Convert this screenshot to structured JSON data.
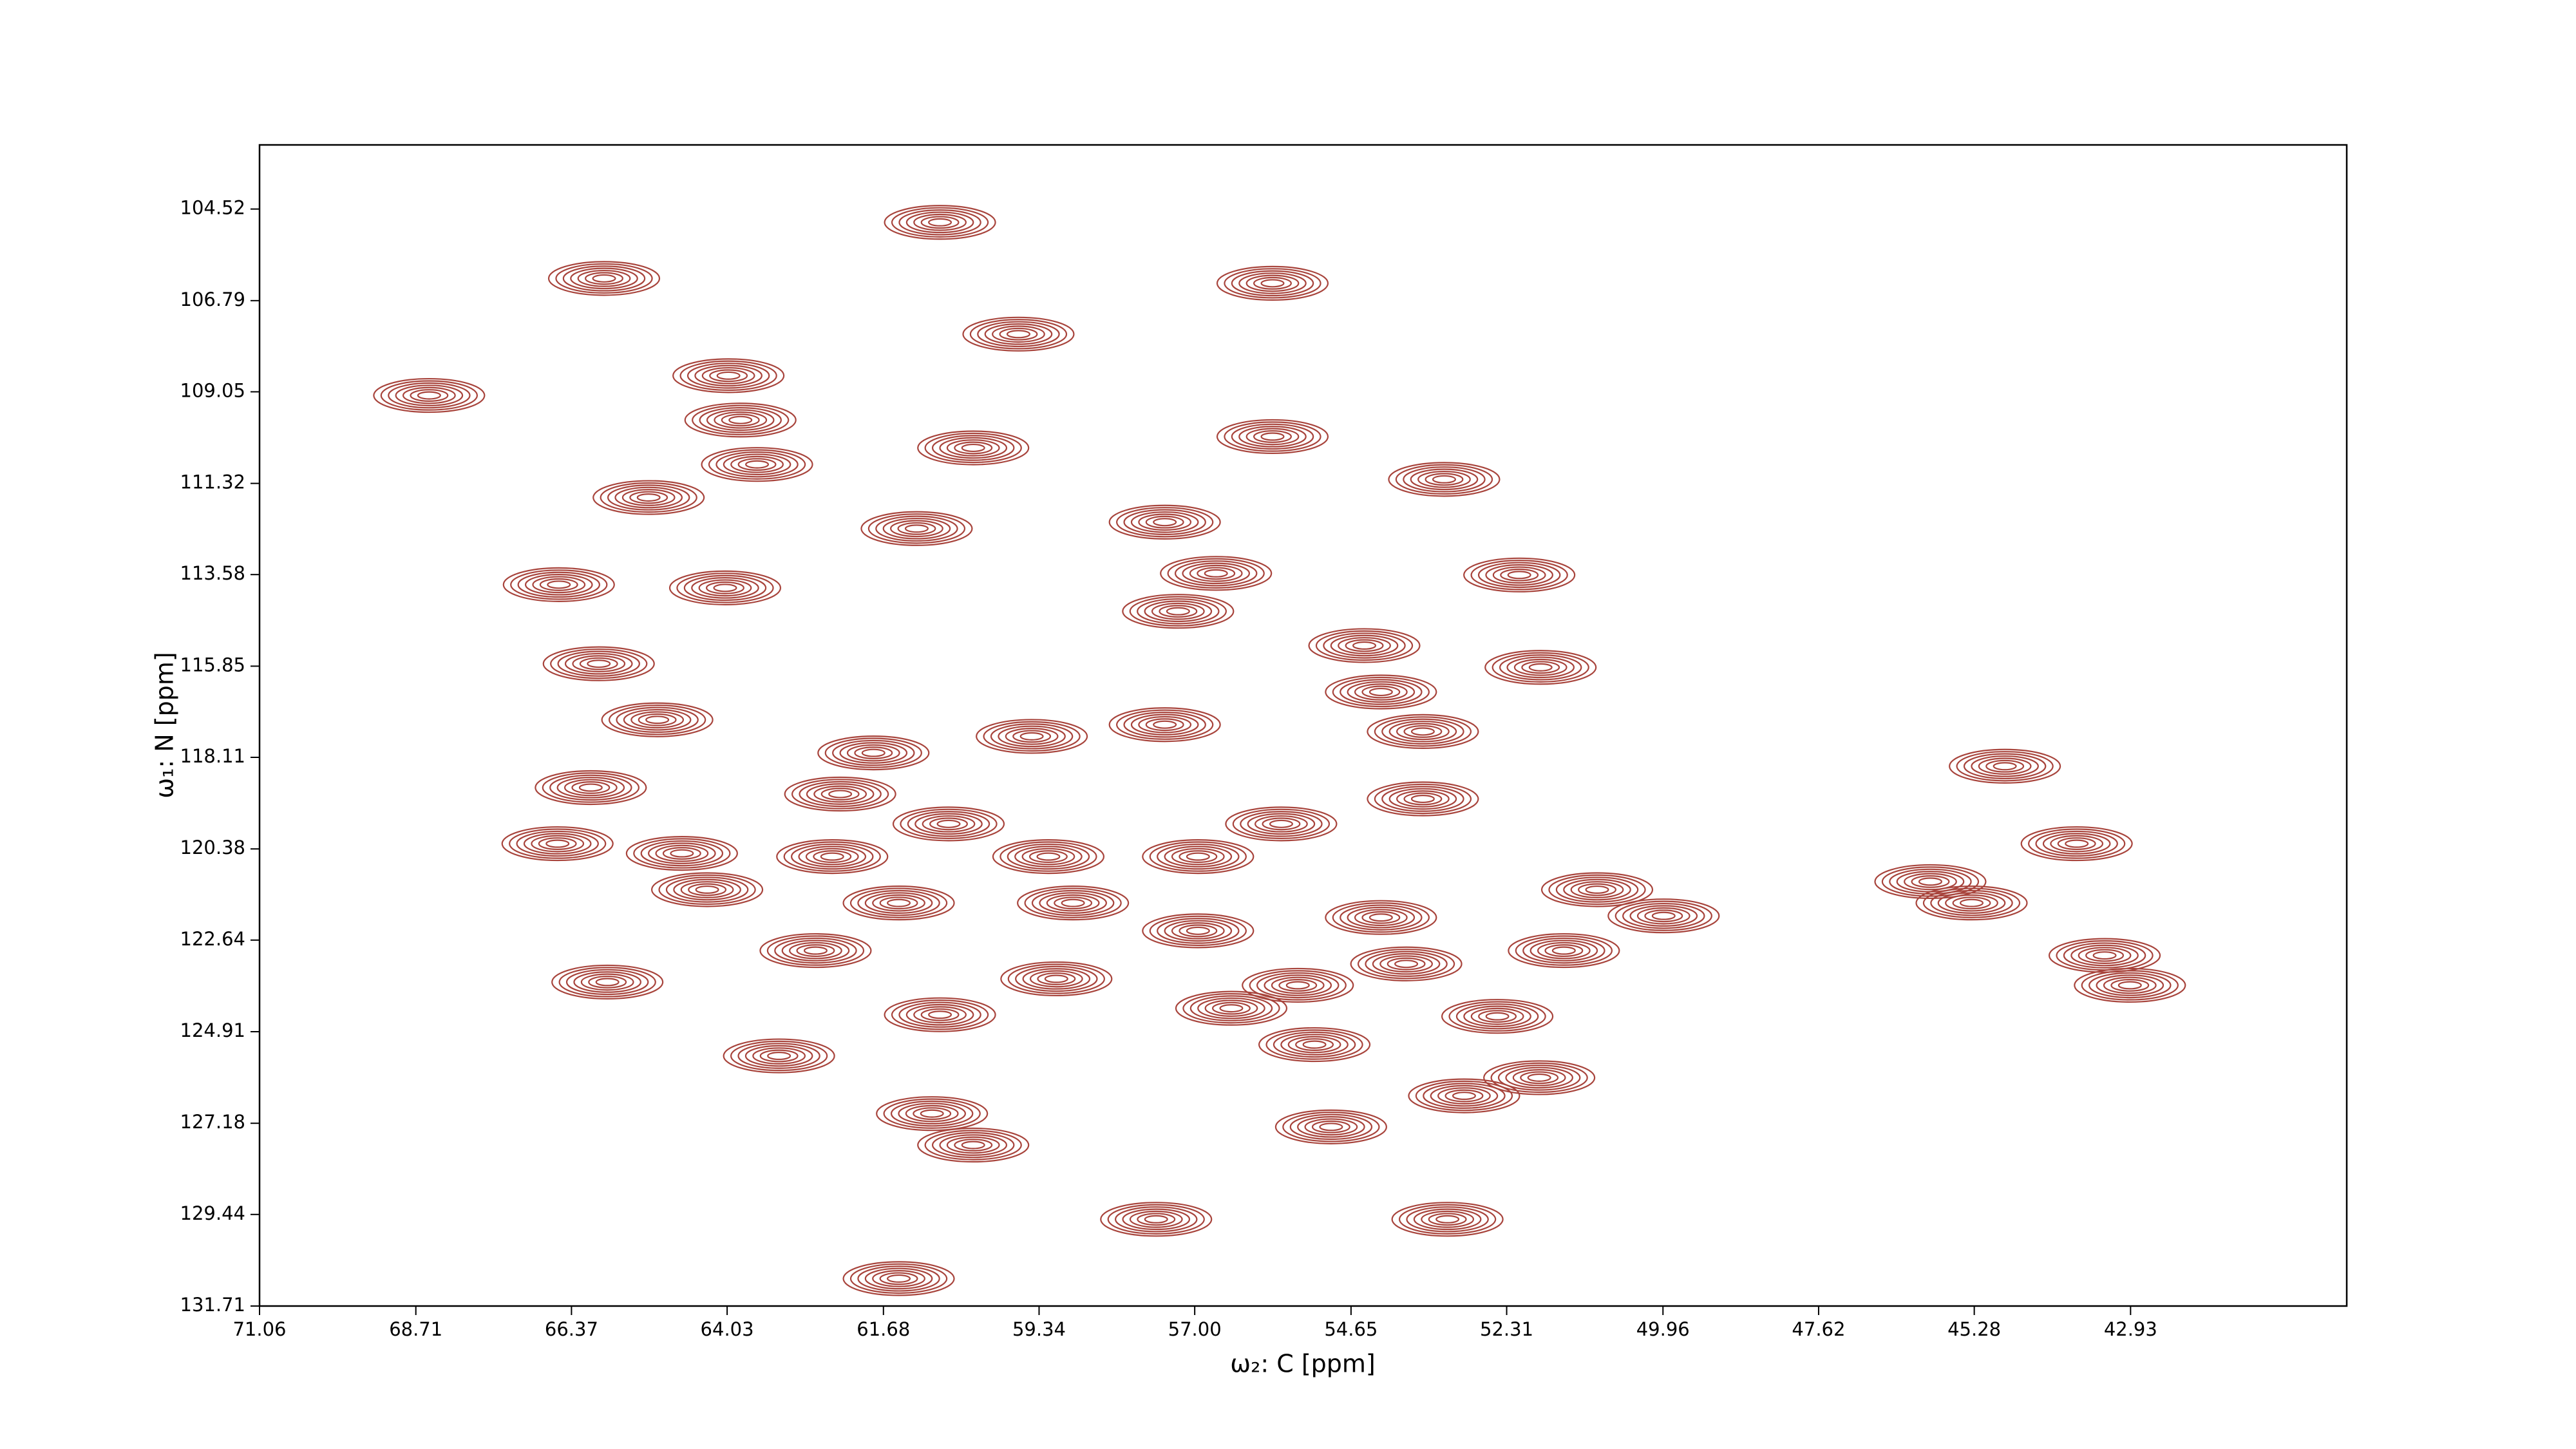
{
  "chart_data": {
    "type": "contour",
    "xlabel": "ω₂: C [ppm]",
    "ylabel": "ω₁: N [ppm]",
    "color": "#a8443c",
    "xlim": [
      71.06,
      39.68
    ],
    "ylim": [
      131.71,
      102.93
    ],
    "xticks": [
      71.06,
      68.71,
      66.37,
      64.03,
      61.68,
      59.34,
      {
        "value": 57,
        "label": "57.00"
      },
      54.65,
      52.31,
      49.96,
      47.62,
      45.28,
      42.93
    ],
    "yticks": [
      104.52,
      106.79,
      109.05,
      111.32,
      113.58,
      115.85,
      118.11,
      120.38,
      122.64,
      124.91,
      127.18,
      129.44,
      131.71
    ],
    "x": [
      60.83,
      65.88,
      55.83,
      59.65,
      68.51,
      64.01,
      63.83,
      55.83,
      63.58,
      60.33,
      65.21,
      53.25,
      61.18,
      57.45,
      66.56,
      56.68,
      64.06,
      57.25,
      52.12,
      65.96,
      54.45,
      51.8,
      65.08,
      61.83,
      54.2,
      53.57,
      44.82,
      66.08,
      62.33,
      59.45,
      57.45,
      53.57,
      66.58,
      60.7,
      59.2,
      43.74,
      64.71,
      62.45,
      56.95,
      55.7,
      64.33,
      61.45,
      58.83,
      50.95,
      49.95,
      45.94,
      45.32,
      54.2,
      62.7,
      51.45,
      56.95,
      43.32,
      65.83,
      59.08,
      53.82,
      55.45,
      42.94,
      60.83,
      56.45,
      52.45,
      55.2,
      63.25,
      51.82,
      52.95,
      60.95,
      54.95,
      60.33,
      57.58,
      53.2,
      61.45
    ],
    "y": [
      104.85,
      106.24,
      106.36,
      107.62,
      109.14,
      108.65,
      109.75,
      110.16,
      110.85,
      110.44,
      111.67,
      111.22,
      112.44,
      112.28,
      113.83,
      113.55,
      113.91,
      114.49,
      113.59,
      115.79,
      115.34,
      115.88,
      117.18,
      118.0,
      116.49,
      117.47,
      118.33,
      118.86,
      119.02,
      117.59,
      117.3,
      119.14,
      120.25,
      119.76,
      120.57,
      120.25,
      120.49,
      120.57,
      120.57,
      119.76,
      121.39,
      121.72,
      121.72,
      121.39,
      122.04,
      121.19,
      121.72,
      122.08,
      122.9,
      122.9,
      122.41,
      123.02,
      123.68,
      123.6,
      123.23,
      123.76,
      123.76,
      124.49,
      124.33,
      124.53,
      125.23,
      125.51,
      126.05,
      126.5,
      126.94,
      127.27,
      127.72,
      129.56,
      129.56,
      131.03
    ]
  }
}
